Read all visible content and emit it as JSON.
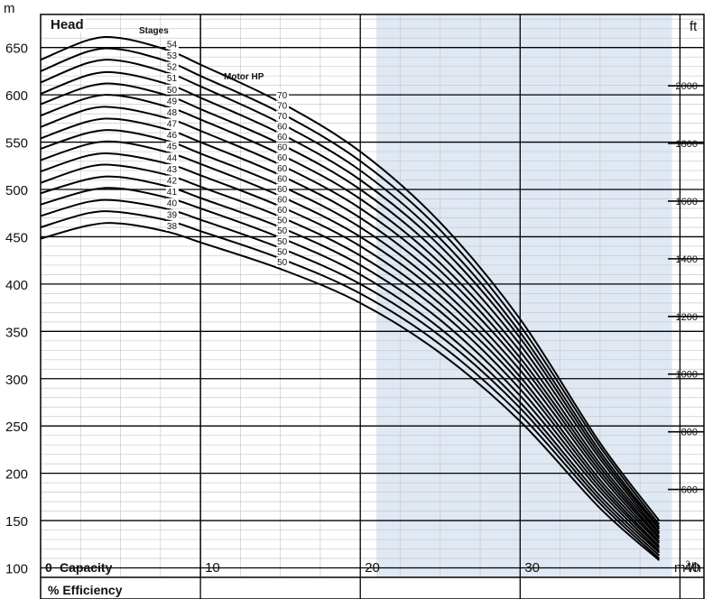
{
  "chart_data": {
    "type": "line",
    "title": "",
    "y_axis_left": {
      "unit": "m",
      "label": "Head",
      "ticks": [
        100,
        150,
        200,
        250,
        300,
        350,
        400,
        450,
        500,
        550,
        600,
        650
      ],
      "range": [
        90,
        685
      ]
    },
    "y_axis_right": {
      "unit": "ft",
      "ticks": [
        600,
        800,
        1000,
        1200,
        1400,
        1600,
        1800,
        2000
      ]
    },
    "x_axis": {
      "unit": "m³/h",
      "unit_base": "m",
      "unit_sup": "3",
      "unit_tail": "/h",
      "label": "Capacity",
      "ticks": [
        0,
        10,
        20,
        30,
        40
      ],
      "range": [
        0,
        41.5
      ]
    },
    "efficiency_label": "% Efficiency",
    "shaded_range": [
      21,
      39.5
    ],
    "stages_label": "Stages",
    "motor_label": "Motor HP",
    "series": [
      {
        "stages": 54,
        "hp": 70,
        "points": [
          [
            0,
            637
          ],
          [
            3,
            658
          ],
          [
            5,
            660
          ],
          [
            8,
            647
          ],
          [
            10,
            632
          ],
          [
            15,
            592
          ],
          [
            20,
            540
          ],
          [
            25,
            465
          ],
          [
            30,
            363
          ],
          [
            35,
            232
          ],
          [
            38.7,
            150
          ]
        ]
      },
      {
        "stages": 53,
        "hp": 70,
        "points": [
          [
            0,
            625
          ],
          [
            3,
            646
          ],
          [
            5,
            648
          ],
          [
            8,
            635
          ],
          [
            10,
            620
          ],
          [
            15,
            581
          ],
          [
            20,
            530
          ],
          [
            25,
            457
          ],
          [
            30,
            356
          ],
          [
            35,
            228
          ],
          [
            38.7,
            146
          ]
        ]
      },
      {
        "stages": 52,
        "hp": 70,
        "points": [
          [
            0,
            613
          ],
          [
            3,
            634
          ],
          [
            5,
            636
          ],
          [
            8,
            623
          ],
          [
            10,
            609
          ],
          [
            15,
            570
          ],
          [
            20,
            520
          ],
          [
            25,
            448
          ],
          [
            30,
            349
          ],
          [
            35,
            223
          ],
          [
            38.7,
            143
          ]
        ]
      },
      {
        "stages": 51,
        "hp": 60,
        "points": [
          [
            0,
            601
          ],
          [
            3,
            621
          ],
          [
            5,
            623
          ],
          [
            8,
            611
          ],
          [
            10,
            597
          ],
          [
            15,
            559
          ],
          [
            20,
            510
          ],
          [
            25,
            440
          ],
          [
            30,
            343
          ],
          [
            35,
            219
          ],
          [
            38.7,
            141
          ]
        ]
      },
      {
        "stages": 50,
        "hp": 60,
        "points": [
          [
            0,
            590
          ],
          [
            3,
            609
          ],
          [
            5,
            611
          ],
          [
            8,
            599
          ],
          [
            10,
            585
          ],
          [
            15,
            548
          ],
          [
            20,
            500
          ],
          [
            25,
            431
          ],
          [
            30,
            336
          ],
          [
            35,
            215
          ],
          [
            38.7,
            138
          ]
        ]
      },
      {
        "stages": 49,
        "hp": 60,
        "points": [
          [
            0,
            578
          ],
          [
            3,
            597
          ],
          [
            5,
            599
          ],
          [
            8,
            587
          ],
          [
            10,
            574
          ],
          [
            15,
            537
          ],
          [
            20,
            490
          ],
          [
            25,
            422
          ],
          [
            30,
            329
          ],
          [
            35,
            210
          ],
          [
            38.7,
            136
          ]
        ]
      },
      {
        "stages": 48,
        "hp": 60,
        "points": [
          [
            0,
            566
          ],
          [
            3,
            585
          ],
          [
            5,
            586
          ],
          [
            8,
            575
          ],
          [
            10,
            562
          ],
          [
            15,
            526
          ],
          [
            20,
            480
          ],
          [
            25,
            414
          ],
          [
            30,
            322
          ],
          [
            35,
            206
          ],
          [
            38.7,
            133
          ]
        ]
      },
      {
        "stages": 47,
        "hp": 60,
        "points": [
          [
            0,
            554
          ],
          [
            3,
            572
          ],
          [
            5,
            574
          ],
          [
            8,
            563
          ],
          [
            10,
            550
          ],
          [
            15,
            515
          ],
          [
            20,
            470
          ],
          [
            25,
            405
          ],
          [
            30,
            316
          ],
          [
            35,
            202
          ],
          [
            38.7,
            131
          ]
        ]
      },
      {
        "stages": 46,
        "hp": 60,
        "points": [
          [
            0,
            543
          ],
          [
            3,
            560
          ],
          [
            5,
            562
          ],
          [
            8,
            551
          ],
          [
            10,
            538
          ],
          [
            15,
            504
          ],
          [
            20,
            460
          ],
          [
            25,
            396
          ],
          [
            30,
            309
          ],
          [
            35,
            198
          ],
          [
            38.7,
            128
          ]
        ]
      },
      {
        "stages": 45,
        "hp": 60,
        "points": [
          [
            0,
            531
          ],
          [
            3,
            548
          ],
          [
            5,
            550
          ],
          [
            8,
            539
          ],
          [
            10,
            527
          ],
          [
            15,
            493
          ],
          [
            20,
            450
          ],
          [
            25,
            388
          ],
          [
            30,
            302
          ],
          [
            35,
            193
          ],
          [
            38.7,
            126
          ]
        ]
      },
      {
        "stages": 44,
        "hp": 60,
        "points": [
          [
            0,
            519
          ],
          [
            3,
            536
          ],
          [
            5,
            537
          ],
          [
            8,
            527
          ],
          [
            10,
            515
          ],
          [
            15,
            482
          ],
          [
            20,
            440
          ],
          [
            25,
            379
          ],
          [
            30,
            296
          ],
          [
            35,
            189
          ],
          [
            38.7,
            123
          ]
        ]
      },
      {
        "stages": 43,
        "hp": 60,
        "points": [
          [
            0,
            507
          ],
          [
            3,
            524
          ],
          [
            5,
            525
          ],
          [
            8,
            515
          ],
          [
            10,
            503
          ],
          [
            15,
            471
          ],
          [
            20,
            430
          ],
          [
            25,
            371
          ],
          [
            30,
            289
          ],
          [
            35,
            185
          ],
          [
            38.7,
            121
          ]
        ]
      },
      {
        "stages": 42,
        "hp": 50,
        "points": [
          [
            0,
            496
          ],
          [
            3,
            511
          ],
          [
            5,
            513
          ],
          [
            8,
            503
          ],
          [
            10,
            491
          ],
          [
            15,
            460
          ],
          [
            20,
            420
          ],
          [
            25,
            362
          ],
          [
            30,
            282
          ],
          [
            35,
            181
          ],
          [
            38.7,
            118
          ]
        ]
      },
      {
        "stages": 41,
        "hp": 50,
        "points": [
          [
            0,
            484
          ],
          [
            3,
            499
          ],
          [
            5,
            501
          ],
          [
            8,
            491
          ],
          [
            10,
            480
          ],
          [
            15,
            449
          ],
          [
            20,
            410
          ],
          [
            25,
            353
          ],
          [
            30,
            275
          ],
          [
            35,
            176
          ],
          [
            38.7,
            116
          ]
        ]
      },
      {
        "stages": 40,
        "hp": 50,
        "points": [
          [
            0,
            472
          ],
          [
            3,
            487
          ],
          [
            5,
            488
          ],
          [
            8,
            479
          ],
          [
            10,
            468
          ],
          [
            15,
            438
          ],
          [
            20,
            400
          ],
          [
            25,
            345
          ],
          [
            30,
            269
          ],
          [
            35,
            172
          ],
          [
            38.7,
            113
          ]
        ]
      },
      {
        "stages": 39,
        "hp": 50,
        "points": [
          [
            0,
            460
          ],
          [
            3,
            475
          ],
          [
            5,
            476
          ],
          [
            8,
            467
          ],
          [
            10,
            456
          ],
          [
            15,
            427
          ],
          [
            20,
            390
          ],
          [
            25,
            336
          ],
          [
            30,
            262
          ],
          [
            35,
            168
          ],
          [
            38.7,
            110
          ]
        ]
      },
      {
        "stages": 38,
        "hp": 50,
        "points": [
          [
            0,
            448
          ],
          [
            3,
            462
          ],
          [
            5,
            464
          ],
          [
            8,
            455
          ],
          [
            10,
            444
          ],
          [
            15,
            416
          ],
          [
            20,
            380
          ],
          [
            25,
            327
          ],
          [
            30,
            255
          ],
          [
            35,
            163
          ],
          [
            38.7,
            108
          ]
        ]
      }
    ]
  }
}
